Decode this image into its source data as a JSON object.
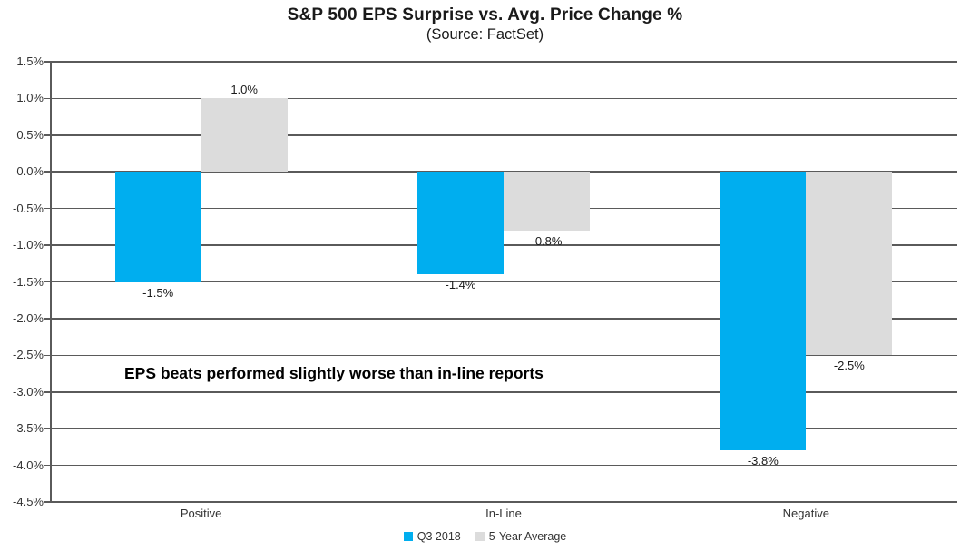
{
  "chart_data": {
    "type": "bar",
    "title": "S&P 500 EPS Surprise vs. Avg. Price Change %",
    "subtitle": "(Source: FactSet)",
    "annotation": "EPS beats performed slightly worse than in-line reports",
    "categories": [
      "Positive",
      "In-Line",
      "Negative"
    ],
    "series": [
      {
        "name": "Q3 2018",
        "color": "#00AEEF",
        "values": [
          -1.5,
          -1.4,
          -3.8
        ],
        "labels": [
          "-1.5%",
          "-1.4%",
          "-3.8%"
        ]
      },
      {
        "name": "5-Year Average",
        "color": "#DCDCDC",
        "values": [
          1.0,
          -0.8,
          -2.5
        ],
        "labels": [
          "1.0%",
          "-0.8%",
          "-2.5%"
        ]
      }
    ],
    "ylabel": "",
    "xlabel": "",
    "ylim": [
      -4.5,
      1.5
    ],
    "ytick_step": 0.5,
    "ytick_labels": [
      "1.5%",
      "1.0%",
      "0.5%",
      "0.0%",
      "-0.5%",
      "-1.0%",
      "-1.5%",
      "-2.0%",
      "-2.5%",
      "-3.0%",
      "-3.5%",
      "-4.0%",
      "-4.5%"
    ],
    "grid": true,
    "gridline_color": "#5a5a5a",
    "legend_position": "bottom"
  }
}
